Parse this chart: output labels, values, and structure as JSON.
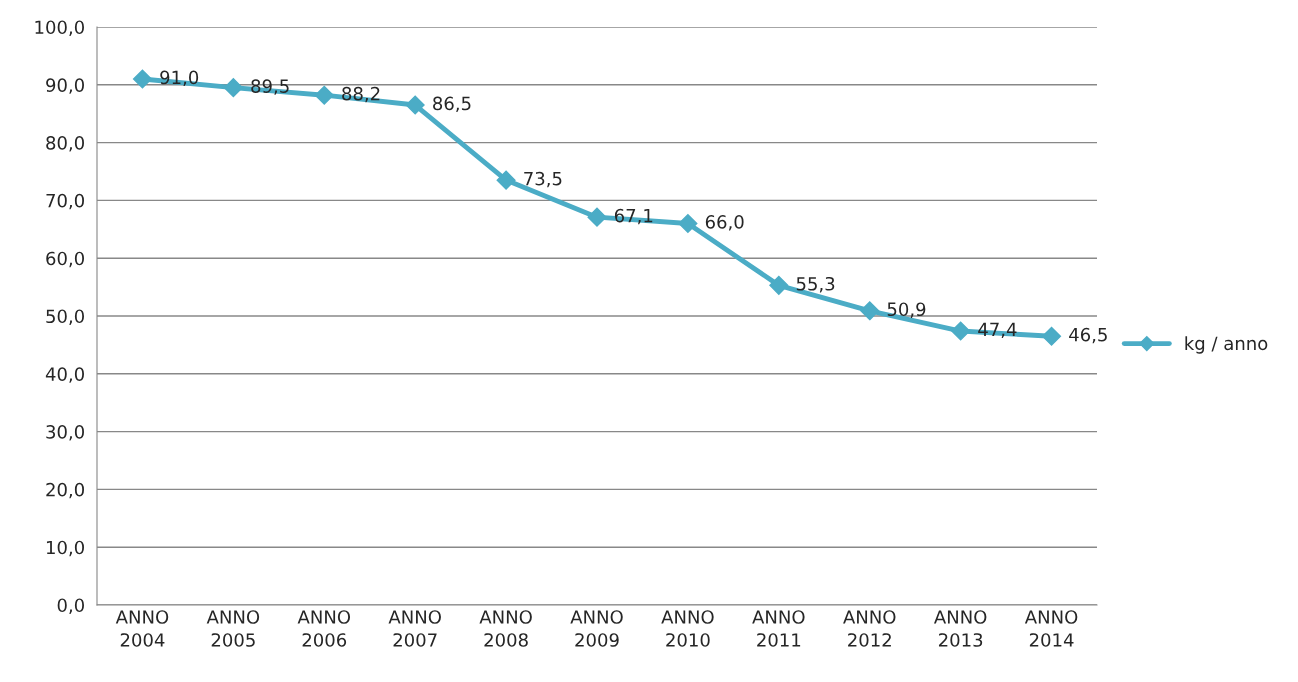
{
  "chart_data": {
    "type": "line",
    "categories": [
      "ANNO\n2004",
      "ANNO\n2005",
      "ANNO\n2006",
      "ANNO\n2007",
      "ANNO\n2008",
      "ANNO\n2009",
      "ANNO\n2010",
      "ANNO\n2011",
      "ANNO\n2012",
      "ANNO\n2013",
      "ANNO\n2014"
    ],
    "series": [
      {
        "name": "kg / anno",
        "color": "#4bacc6",
        "values": [
          91.0,
          89.5,
          88.2,
          86.5,
          73.5,
          67.1,
          66.0,
          55.3,
          50.9,
          47.4,
          46.5
        ],
        "value_labels": [
          "91,0",
          "89,5",
          "88,2",
          "86,5",
          "73,5",
          "67,1",
          "66,0",
          "55,3",
          "50,9",
          "47,4",
          "46,5"
        ]
      }
    ],
    "ylim": [
      0,
      100
    ],
    "yticks": [
      {
        "value": 0,
        "label": "0,0"
      },
      {
        "value": 10,
        "label": "10,0"
      },
      {
        "value": 20,
        "label": "20,0"
      },
      {
        "value": 30,
        "label": "30,0"
      },
      {
        "value": 40,
        "label": "40,0"
      },
      {
        "value": 50,
        "label": "50,0"
      },
      {
        "value": 60,
        "label": "60,0"
      },
      {
        "value": 70,
        "label": "70,0"
      },
      {
        "value": 80,
        "label": "80,0"
      },
      {
        "value": 90,
        "label": "90,0"
      },
      {
        "value": 100,
        "label": "100,0"
      }
    ],
    "grid": "y",
    "legend": "right",
    "marker": "diamond",
    "line_style": "solid"
  }
}
